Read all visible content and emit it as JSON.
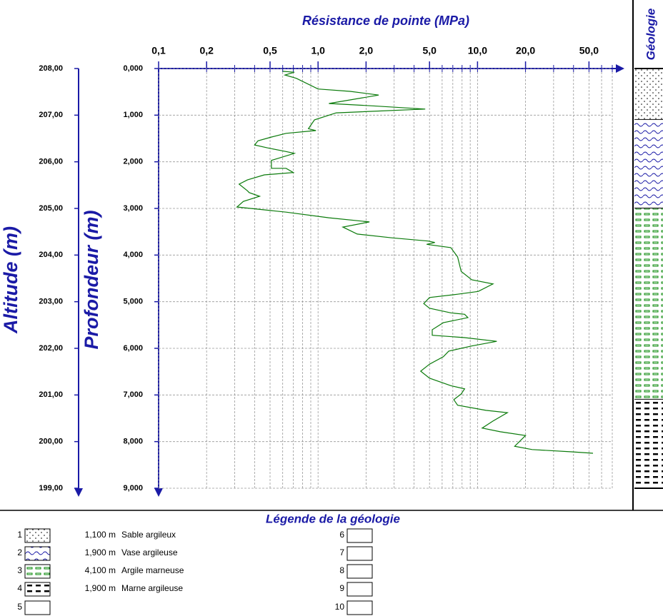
{
  "chart_data": {
    "type": "line",
    "title": "Résistance de pointe (MPa)",
    "ylabel": "Profondeur (m)",
    "y2label": "Altitude (m)",
    "color": "#0a7a0a",
    "xscale": "log",
    "xlim": [
      0.1,
      70
    ],
    "xticks": [
      {
        "value": 0.1,
        "label": "0,1"
      },
      {
        "value": 0.2,
        "label": "0,2"
      },
      {
        "value": 0.5,
        "label": "0,5"
      },
      {
        "value": 1,
        "label": "1,0"
      },
      {
        "value": 2,
        "label": "2,0"
      },
      {
        "value": 5,
        "label": "5,0"
      },
      {
        "value": 10,
        "label": "10,0"
      },
      {
        "value": 20,
        "label": "20,0"
      },
      {
        "value": 50,
        "label": "50,0"
      }
    ],
    "xgrid": [
      0.1,
      0.2,
      0.3,
      0.4,
      0.5,
      0.6,
      0.7,
      0.8,
      0.9,
      1,
      2,
      3,
      4,
      5,
      6,
      7,
      8,
      9,
      10,
      20,
      30,
      40,
      50,
      60,
      70
    ],
    "ylim": [
      0,
      9
    ],
    "yticks": [
      {
        "value": 0,
        "label": "0,000"
      },
      {
        "value": 1,
        "label": "1,000"
      },
      {
        "value": 2,
        "label": "2,000"
      },
      {
        "value": 3,
        "label": "3,000"
      },
      {
        "value": 4,
        "label": "4,000"
      },
      {
        "value": 5,
        "label": "5,000"
      },
      {
        "value": 6,
        "label": "6,000"
      },
      {
        "value": 7,
        "label": "7,000"
      },
      {
        "value": 8,
        "label": "8,000"
      },
      {
        "value": 9,
        "label": "9,000"
      }
    ],
    "y2lim": [
      208,
      199
    ],
    "y2ticks": [
      {
        "value": 208,
        "label": "208,00"
      },
      {
        "value": 207,
        "label": "207,00"
      },
      {
        "value": 206,
        "label": "206,00"
      },
      {
        "value": 205,
        "label": "205,00"
      },
      {
        "value": 204,
        "label": "204,00"
      },
      {
        "value": 203,
        "label": "203,00"
      },
      {
        "value": 202,
        "label": "202,00"
      },
      {
        "value": 201,
        "label": "201,00"
      },
      {
        "value": 200,
        "label": "200,00"
      },
      {
        "value": 199,
        "label": "199,00"
      }
    ],
    "grid": true,
    "x": [
      0.6,
      0.71,
      0.62,
      0.73,
      1.0,
      1.59,
      2.4,
      1.17,
      2.2,
      4.7,
      1.3,
      0.95,
      0.87,
      0.97,
      0.63,
      0.51,
      0.42,
      0.4,
      0.48,
      0.63,
      0.71,
      0.51,
      0.51,
      0.63,
      0.7,
      0.46,
      0.36,
      0.32,
      0.36,
      0.37,
      0.43,
      0.34,
      0.31,
      0.63,
      1.17,
      2.1,
      1.43,
      1.76,
      2.9,
      4.9,
      5.4,
      4.8,
      6.8,
      7.5,
      7.9,
      9.2,
      12.5,
      10.1,
      7.5,
      5.0,
      4.6,
      5.0,
      6.8,
      8.3,
      8.7,
      6.1,
      5.2,
      5.2,
      8.3,
      13.2,
      9.2,
      6.6,
      6.1,
      5.0,
      4.4,
      5.0,
      6.8,
      8.3,
      7.9,
      7.1,
      7.5,
      11.3,
      15.4,
      12.5,
      10.7,
      13.9,
      20.0,
      17.1,
      22.0,
      39,
      53
    ],
    "y": [
      0.06,
      0.08,
      0.14,
      0.21,
      0.44,
      0.49,
      0.57,
      0.75,
      0.8,
      0.87,
      0.95,
      1.1,
      1.29,
      1.33,
      1.39,
      1.47,
      1.55,
      1.64,
      1.7,
      1.78,
      1.82,
      1.97,
      2.14,
      2.14,
      2.23,
      2.28,
      2.39,
      2.48,
      2.62,
      2.66,
      2.74,
      2.85,
      2.97,
      3.08,
      3.2,
      3.29,
      3.4,
      3.55,
      3.63,
      3.7,
      3.73,
      3.77,
      3.84,
      4.04,
      4.35,
      4.53,
      4.62,
      4.78,
      4.84,
      4.91,
      5.04,
      5.14,
      5.24,
      5.27,
      5.34,
      5.45,
      5.6,
      5.72,
      5.77,
      5.85,
      5.95,
      6.06,
      6.18,
      6.34,
      6.49,
      6.64,
      6.8,
      6.87,
      6.98,
      7.1,
      7.22,
      7.33,
      7.38,
      7.56,
      7.71,
      7.79,
      7.87,
      8.1,
      8.17,
      8.22,
      8.25
    ]
  },
  "geology": {
    "title": "Géologie",
    "legend_title": "Légende de la géologie",
    "layers": [
      {
        "number": 1,
        "thickness": 1.1,
        "thickness_label": "1,100 m",
        "name": "Sable argileux",
        "pattern": "dots"
      },
      {
        "number": 2,
        "thickness": 1.9,
        "thickness_label": "1,900 m",
        "name": "Vase argileuse",
        "pattern": "waves"
      },
      {
        "number": 3,
        "thickness": 4.1,
        "thickness_label": "4,100 m",
        "name": "Argile marneuse",
        "pattern": "greendash"
      },
      {
        "number": 4,
        "thickness": 1.9,
        "thickness_label": "1,900 m",
        "name": "Marne argileuse",
        "pattern": "blackdash"
      }
    ],
    "empty_numbers": [
      5,
      6,
      7,
      8,
      9,
      10
    ]
  }
}
